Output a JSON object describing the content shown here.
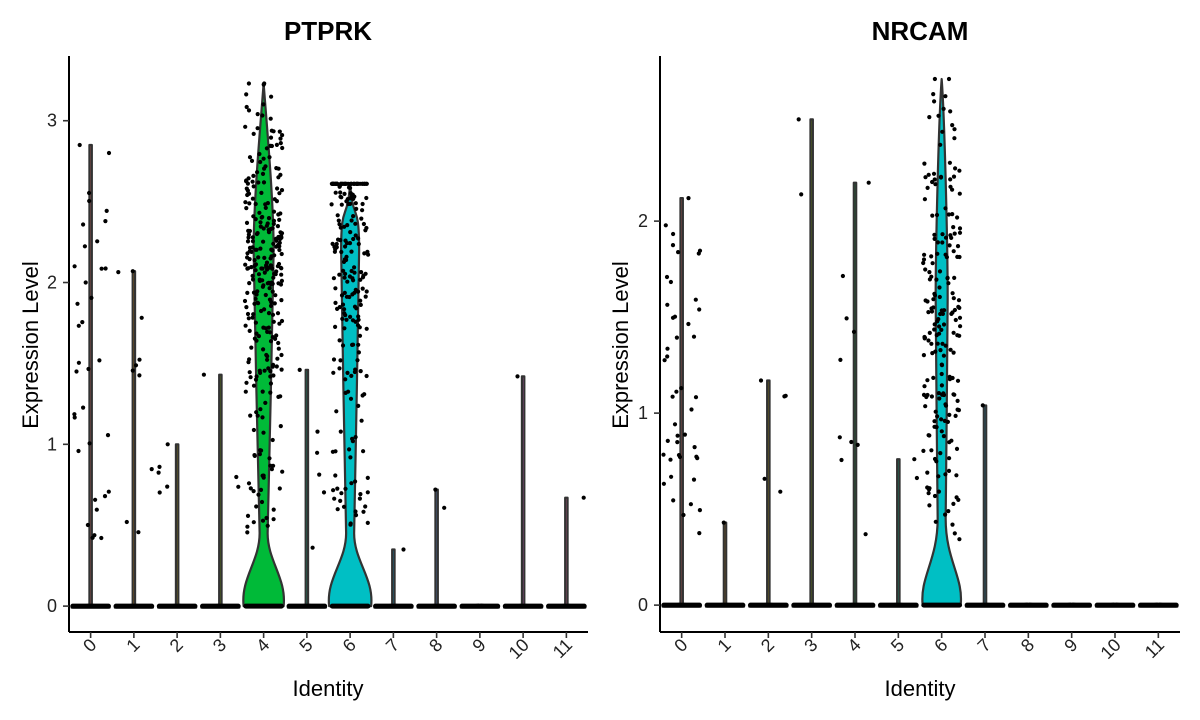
{
  "chart_data": [
    {
      "type": "violin",
      "title": "PTPRK",
      "xlabel": "Identity",
      "ylabel": "Expression Level",
      "categories": [
        "0",
        "1",
        "2",
        "3",
        "4",
        "5",
        "6",
        "7",
        "8",
        "9",
        "10",
        "11"
      ],
      "yticks": [
        0,
        1,
        2,
        3
      ],
      "ylim": [
        -0.16,
        3.4
      ],
      "max_values": [
        2.85,
        2.07,
        1.0,
        1.43,
        3.23,
        1.46,
        2.61,
        0.35,
        0.72,
        0.0,
        1.42,
        0.67
      ],
      "fill_colors": [
        "#F8766D",
        "#DE8C00",
        "#B79F00",
        "#7CAE00",
        "#00BA38",
        "#00C08B",
        "#00BFC4",
        "#00B4F0",
        "#619CFF",
        "#C77CFF",
        "#F564E3",
        "#FF64B0"
      ],
      "nonzero_points": [
        35,
        10,
        5,
        3,
        300,
        6,
        220,
        1,
        2,
        0,
        1,
        1
      ]
    },
    {
      "type": "violin",
      "title": "NRCAM",
      "xlabel": "Identity",
      "ylabel": "Expression Level",
      "categories": [
        "0",
        "1",
        "2",
        "3",
        "4",
        "5",
        "6",
        "7",
        "8",
        "9",
        "10",
        "11"
      ],
      "yticks": [
        0,
        1,
        2
      ],
      "ylim": [
        -0.14,
        2.86
      ],
      "max_values": [
        2.12,
        0.43,
        1.17,
        2.53,
        2.2,
        0.76,
        2.74,
        1.04,
        0.0,
        0.0,
        0.0,
        0.0
      ],
      "fill_colors": [
        "#F8766D",
        "#DE8C00",
        "#B79F00",
        "#7CAE00",
        "#00BA38",
        "#00C08B",
        "#00BFC4",
        "#00B4F0",
        "#619CFF",
        "#C77CFF",
        "#F564E3",
        "#FF64B0"
      ],
      "nonzero_points": [
        45,
        1,
        5,
        2,
        10,
        2,
        200,
        1,
        0,
        0,
        0,
        0
      ]
    }
  ]
}
